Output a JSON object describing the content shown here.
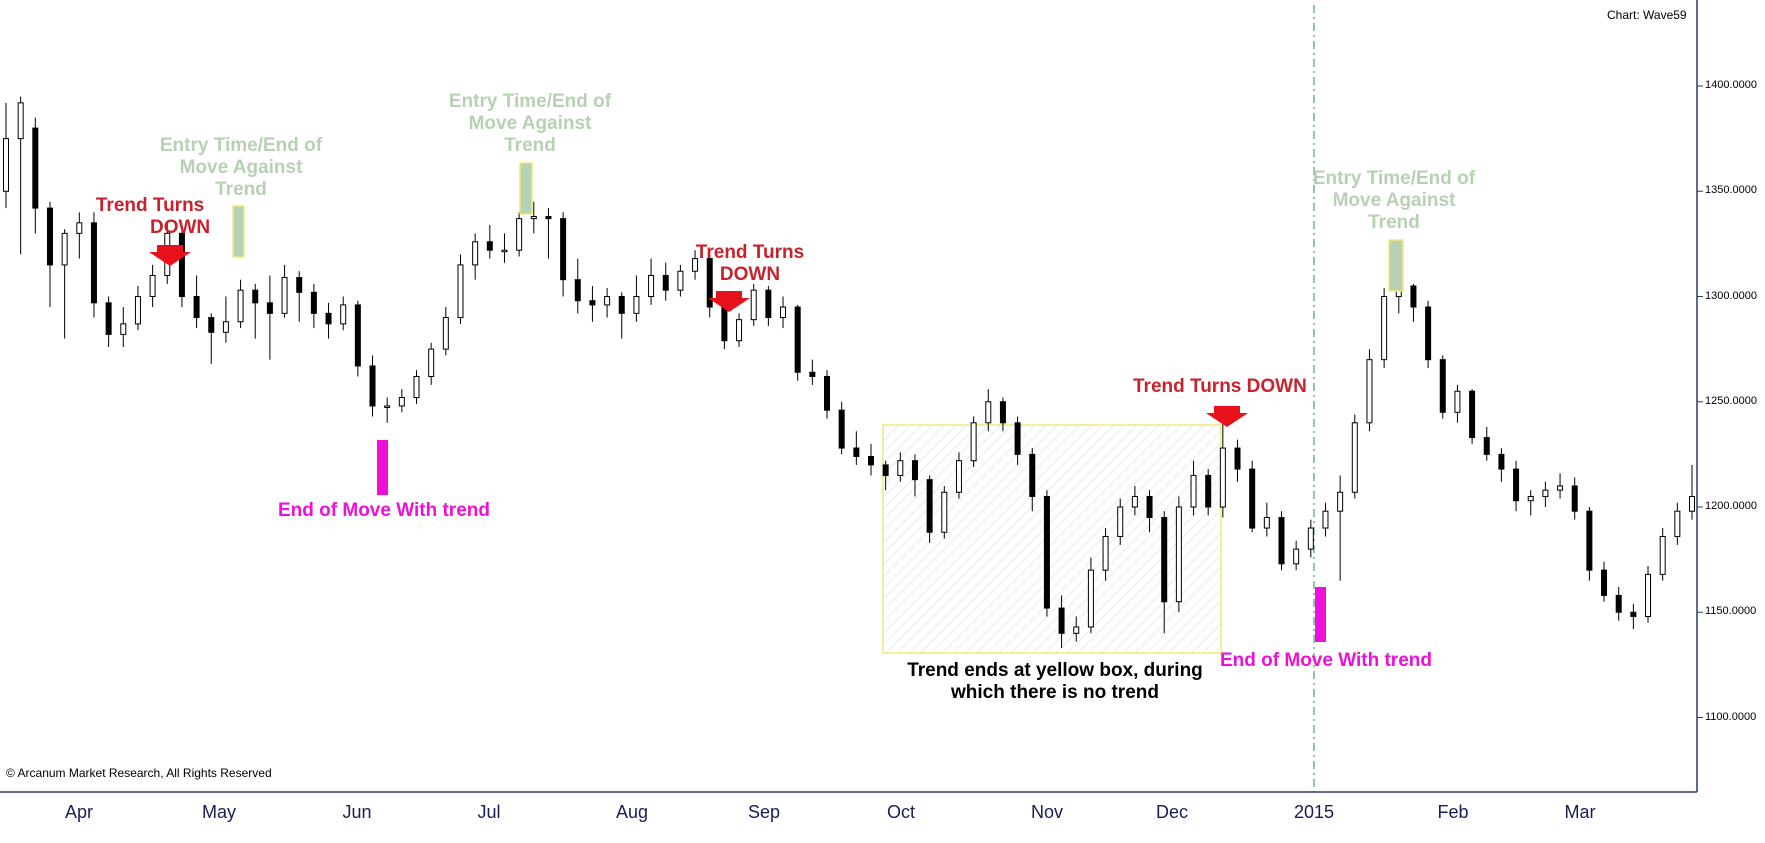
{
  "chart_label": "Chart: Wave59",
  "copyright": "© Arcanum Market Research, All Rights Reserved",
  "colors": {
    "bull_candle": "#ffffff",
    "bear_candle": "#000000",
    "trend_down": "#c8232c",
    "entry_time": "#b7d1b3",
    "end_of_move": "#ee10d8",
    "no_trend_box_border": "#f2ea7a"
  },
  "annotations": {
    "trend_down_1_line1": "Trend Turns",
    "trend_down_1_line2": "DOWN",
    "entry_1": [
      "Entry Time/End of",
      "Move Against",
      "Trend"
    ],
    "end_move_1": "End of Move With trend",
    "entry_2": [
      "Entry Time/End of",
      "Move Against",
      "Trend"
    ],
    "trend_down_2_line1": "Trend Turns",
    "trend_down_2_line2": "DOWN",
    "trend_down_3": "Trend Turns DOWN",
    "no_trend_line1": "Trend ends at yellow box, during",
    "no_trend_line2": "which there is no trend",
    "entry_3": [
      "Entry Time/End of",
      "Move Against",
      "Trend"
    ],
    "end_move_2": "End of Move With trend"
  },
  "chart_data": {
    "type": "candlestick",
    "title": "",
    "ylim": [
      1065,
      1440
    ],
    "y_ticks": [
      "1400.0000",
      "1350.0000",
      "1300.0000",
      "1250.0000",
      "1200.0000",
      "1150.0000",
      "1100.0000"
    ],
    "x_ticks": [
      "Apr",
      "May",
      "Jun",
      "Jul",
      "Aug",
      "Sep",
      "Oct",
      "Nov",
      "Dec",
      "2015",
      "Feb",
      "Mar"
    ],
    "series": [
      {
        "values": [
          1375,
          1392,
          1342,
          1315,
          1330,
          1335,
          1297,
          1282,
          1287,
          1300,
          1310,
          1330,
          1300,
          1290,
          1283,
          1288,
          1303,
          1297,
          1292,
          1309,
          1302,
          1292,
          1287,
          1296,
          1267,
          1248,
          1248,
          1252,
          1262,
          1275,
          1290,
          1315,
          1326,
          1322,
          1322,
          1337,
          1338,
          1337,
          1308,
          1298,
          1296,
          1300,
          1292,
          1300,
          1310,
          1303,
          1312,
          1318,
          1295,
          1279,
          1289,
          1303,
          1290,
          1295,
          1264,
          1262,
          1246,
          1228,
          1224,
          1220,
          1215,
          1222,
          1213,
          1188,
          1207,
          1222,
          1240,
          1250,
          1240,
          1225,
          1205,
          1152,
          1140,
          1143,
          1170,
          1186,
          1200,
          1205,
          1195,
          1155,
          1200,
          1215,
          1200,
          1228,
          1218,
          1190,
          1195,
          1173,
          1180,
          1190,
          1198,
          1207,
          1240,
          1270,
          1300,
          1305,
          1295,
          1270,
          1245,
          1255,
          1233,
          1225,
          1218,
          1203,
          1205,
          1208,
          1210,
          1198,
          1170,
          1158,
          1150,
          1148,
          1168,
          1186,
          1198,
          1205
        ],
        "ohlc": [
          [
            1350,
            1392,
            1342,
            1375
          ],
          [
            1375,
            1395,
            1320,
            1392
          ],
          [
            1380,
            1385,
            1330,
            1342
          ],
          [
            1342,
            1345,
            1295,
            1315
          ],
          [
            1315,
            1332,
            1280,
            1330
          ],
          [
            1330,
            1340,
            1318,
            1335
          ],
          [
            1335,
            1340,
            1290,
            1297
          ],
          [
            1297,
            1300,
            1276,
            1282
          ],
          [
            1282,
            1295,
            1276,
            1287
          ],
          [
            1287,
            1305,
            1284,
            1300
          ],
          [
            1300,
            1315,
            1295,
            1310
          ],
          [
            1310,
            1335,
            1306,
            1330
          ],
          [
            1330,
            1332,
            1295,
            1300
          ],
          [
            1300,
            1310,
            1285,
            1290
          ],
          [
            1290,
            1292,
            1268,
            1283
          ],
          [
            1283,
            1300,
            1278,
            1288
          ],
          [
            1288,
            1308,
            1285,
            1303
          ],
          [
            1303,
            1306,
            1280,
            1297
          ],
          [
            1297,
            1310,
            1270,
            1292
          ],
          [
            1292,
            1315,
            1290,
            1309
          ],
          [
            1309,
            1312,
            1288,
            1302
          ],
          [
            1302,
            1306,
            1285,
            1292
          ],
          [
            1292,
            1297,
            1280,
            1287
          ],
          [
            1287,
            1300,
            1284,
            1296
          ],
          [
            1296,
            1298,
            1262,
            1267
          ],
          [
            1267,
            1272,
            1243,
            1248
          ],
          [
            1248,
            1252,
            1240,
            1248
          ],
          [
            1248,
            1256,
            1245,
            1252
          ],
          [
            1252,
            1265,
            1249,
            1262
          ],
          [
            1262,
            1278,
            1258,
            1275
          ],
          [
            1275,
            1295,
            1272,
            1290
          ],
          [
            1290,
            1320,
            1287,
            1315
          ],
          [
            1315,
            1330,
            1308,
            1326
          ],
          [
            1326,
            1334,
            1318,
            1322
          ],
          [
            1322,
            1330,
            1316,
            1322
          ],
          [
            1322,
            1340,
            1319,
            1337
          ],
          [
            1337,
            1345,
            1330,
            1338
          ],
          [
            1338,
            1342,
            1318,
            1337
          ],
          [
            1337,
            1340,
            1300,
            1308
          ],
          [
            1308,
            1318,
            1292,
            1298
          ],
          [
            1298,
            1305,
            1288,
            1296
          ],
          [
            1296,
            1304,
            1290,
            1300
          ],
          [
            1300,
            1302,
            1280,
            1292
          ],
          [
            1292,
            1310,
            1288,
            1300
          ],
          [
            1300,
            1318,
            1296,
            1310
          ],
          [
            1310,
            1316,
            1298,
            1303
          ],
          [
            1303,
            1315,
            1300,
            1312
          ],
          [
            1312,
            1322,
            1308,
            1318
          ],
          [
            1318,
            1320,
            1290,
            1295
          ],
          [
            1295,
            1298,
            1275,
            1279
          ],
          [
            1279,
            1292,
            1276,
            1289
          ],
          [
            1289,
            1306,
            1286,
            1303
          ],
          [
            1303,
            1305,
            1286,
            1290
          ],
          [
            1290,
            1300,
            1285,
            1295
          ],
          [
            1295,
            1296,
            1260,
            1264
          ],
          [
            1264,
            1270,
            1258,
            1262
          ],
          [
            1262,
            1265,
            1242,
            1246
          ],
          [
            1246,
            1250,
            1225,
            1228
          ],
          [
            1228,
            1236,
            1220,
            1224
          ],
          [
            1224,
            1230,
            1215,
            1220
          ],
          [
            1220,
            1222,
            1208,
            1215
          ],
          [
            1215,
            1226,
            1212,
            1222
          ],
          [
            1222,
            1225,
            1205,
            1213
          ],
          [
            1213,
            1215,
            1183,
            1188
          ],
          [
            1188,
            1210,
            1185,
            1207
          ],
          [
            1207,
            1226,
            1204,
            1222
          ],
          [
            1222,
            1243,
            1219,
            1240
          ],
          [
            1240,
            1256,
            1236,
            1250
          ],
          [
            1250,
            1252,
            1236,
            1240
          ],
          [
            1240,
            1243,
            1220,
            1225
          ],
          [
            1225,
            1228,
            1198,
            1205
          ],
          [
            1205,
            1208,
            1148,
            1152
          ],
          [
            1152,
            1158,
            1133,
            1140
          ],
          [
            1140,
            1148,
            1136,
            1143
          ],
          [
            1143,
            1176,
            1140,
            1170
          ],
          [
            1170,
            1190,
            1165,
            1186
          ],
          [
            1186,
            1204,
            1182,
            1200
          ],
          [
            1200,
            1210,
            1196,
            1205
          ],
          [
            1205,
            1208,
            1188,
            1195
          ],
          [
            1195,
            1198,
            1140,
            1155
          ],
          [
            1155,
            1205,
            1150,
            1200
          ],
          [
            1200,
            1222,
            1196,
            1215
          ],
          [
            1215,
            1218,
            1196,
            1200
          ],
          [
            1200,
            1240,
            1195,
            1228
          ],
          [
            1228,
            1232,
            1212,
            1218
          ],
          [
            1218,
            1222,
            1188,
            1190
          ],
          [
            1190,
            1202,
            1186,
            1195
          ],
          [
            1195,
            1198,
            1170,
            1173
          ],
          [
            1173,
            1184,
            1170,
            1180
          ],
          [
            1180,
            1194,
            1176,
            1190
          ],
          [
            1190,
            1202,
            1186,
            1198
          ],
          [
            1198,
            1215,
            1165,
            1207
          ],
          [
            1207,
            1244,
            1204,
            1240
          ],
          [
            1240,
            1275,
            1236,
            1270
          ],
          [
            1270,
            1304,
            1266,
            1300
          ],
          [
            1300,
            1308,
            1292,
            1305
          ],
          [
            1305,
            1306,
            1288,
            1295
          ],
          [
            1295,
            1298,
            1266,
            1270
          ],
          [
            1270,
            1272,
            1242,
            1245
          ],
          [
            1245,
            1258,
            1240,
            1255
          ],
          [
            1255,
            1256,
            1230,
            1233
          ],
          [
            1233,
            1238,
            1222,
            1225
          ],
          [
            1225,
            1228,
            1212,
            1218
          ],
          [
            1218,
            1222,
            1198,
            1203
          ],
          [
            1203,
            1208,
            1196,
            1205
          ],
          [
            1205,
            1212,
            1200,
            1208
          ],
          [
            1208,
            1216,
            1204,
            1210
          ],
          [
            1210,
            1214,
            1194,
            1198
          ],
          [
            1198,
            1200,
            1165,
            1170
          ],
          [
            1170,
            1174,
            1155,
            1158
          ],
          [
            1158,
            1162,
            1146,
            1150
          ],
          [
            1150,
            1154,
            1142,
            1148
          ],
          [
            1148,
            1172,
            1145,
            1168
          ],
          [
            1168,
            1190,
            1165,
            1186
          ],
          [
            1186,
            1202,
            1182,
            1198
          ],
          [
            1198,
            1220,
            1194,
            1205
          ]
        ]
      }
    ],
    "no_trend_range": {
      "price_high": 1240,
      "price_low": 1130
    },
    "vertical_marker_label": "2015"
  }
}
